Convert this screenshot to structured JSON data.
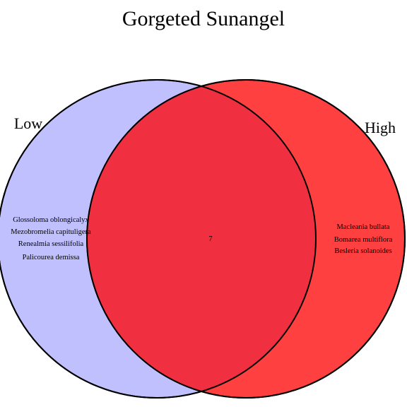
{
  "title": "Gorgeted Sunangel",
  "colors": {
    "low_fill": "#c0c0ff",
    "high_fill": "#ff4040",
    "intersection_fill": "#f03040",
    "stroke": "#000000",
    "text": "#000000"
  },
  "sets": [
    {
      "name": "Low",
      "only_items": [
        "Glossoloma oblongicalyx",
        "Mezobromelia capituligera",
        "Renealmia sessilifolia",
        "Palicourea demissa"
      ]
    },
    {
      "name": "High",
      "only_items": [
        "Macleania bullata",
        "Bomarea multiflora",
        "Besleria solanoides"
      ]
    }
  ],
  "intersection": {
    "label": "7"
  }
}
